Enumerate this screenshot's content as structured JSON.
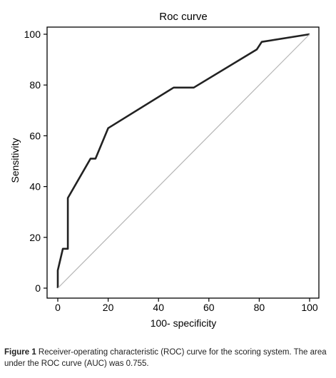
{
  "chart_data": {
    "type": "line",
    "title": "Roc curve",
    "xlabel": "100- specificity",
    "ylabel": "Sensitivity",
    "xlim": [
      0,
      100
    ],
    "ylim": [
      0,
      100
    ],
    "xticks": [
      "0",
      "20",
      "40",
      "60",
      "80",
      "100"
    ],
    "yticks": [
      "0",
      "20",
      "40",
      "60",
      "80",
      "100"
    ],
    "grid": false,
    "series": [
      {
        "color": "#222222",
        "x": [
          0,
          0,
          2,
          4,
          4,
          13,
          15,
          20,
          46,
          54,
          79,
          81,
          100
        ],
        "y": [
          0,
          7,
          15.5,
          15.5,
          35.5,
          51,
          51,
          63,
          79,
          79,
          94,
          97,
          100
        ]
      },
      {
        "color": "#b5b5b5",
        "x": [
          0,
          100
        ],
        "y": [
          0,
          100
        ]
      }
    ]
  },
  "caption": {
    "lead": "Figure 1",
    "text": " Receiver-operating characteristic (ROC) curve for the scoring system. The area under the ROC curve (AUC) was 0.755."
  }
}
